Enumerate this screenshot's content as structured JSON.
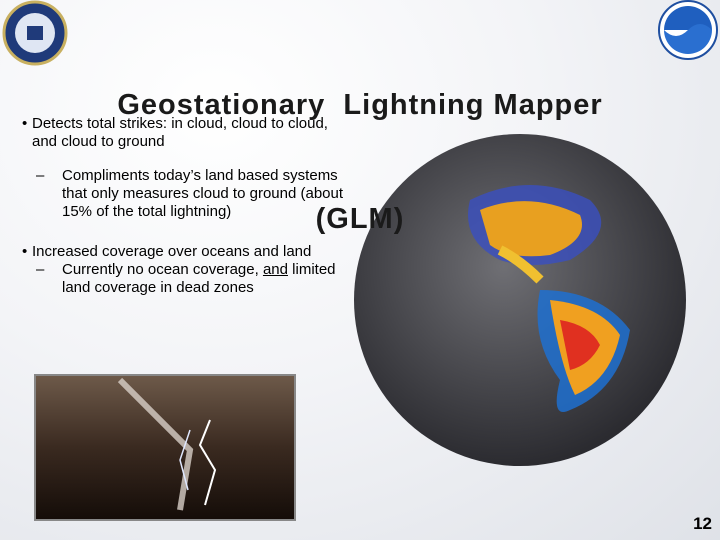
{
  "header": {
    "title_lines": [
      "Geostationary  Lightning Mapper",
      "(GLM)"
    ]
  },
  "bullets": [
    {
      "text": "Detects total strikes: in cloud, cloud to cloud, and cloud to ground",
      "subitems": [
        {
          "parts": [
            "Compliments today’s land based systems that only measures cloud to ground (about 15% of the total lightning)"
          ]
        }
      ]
    },
    {
      "text": "Increased coverage over oceans and land",
      "subitems": [
        {
          "parts": [
            "Currently no ocean coverage,",
            "and",
            "limited land coverage in dead zones"
          ]
        }
      ]
    }
  ],
  "page_number": 12
}
